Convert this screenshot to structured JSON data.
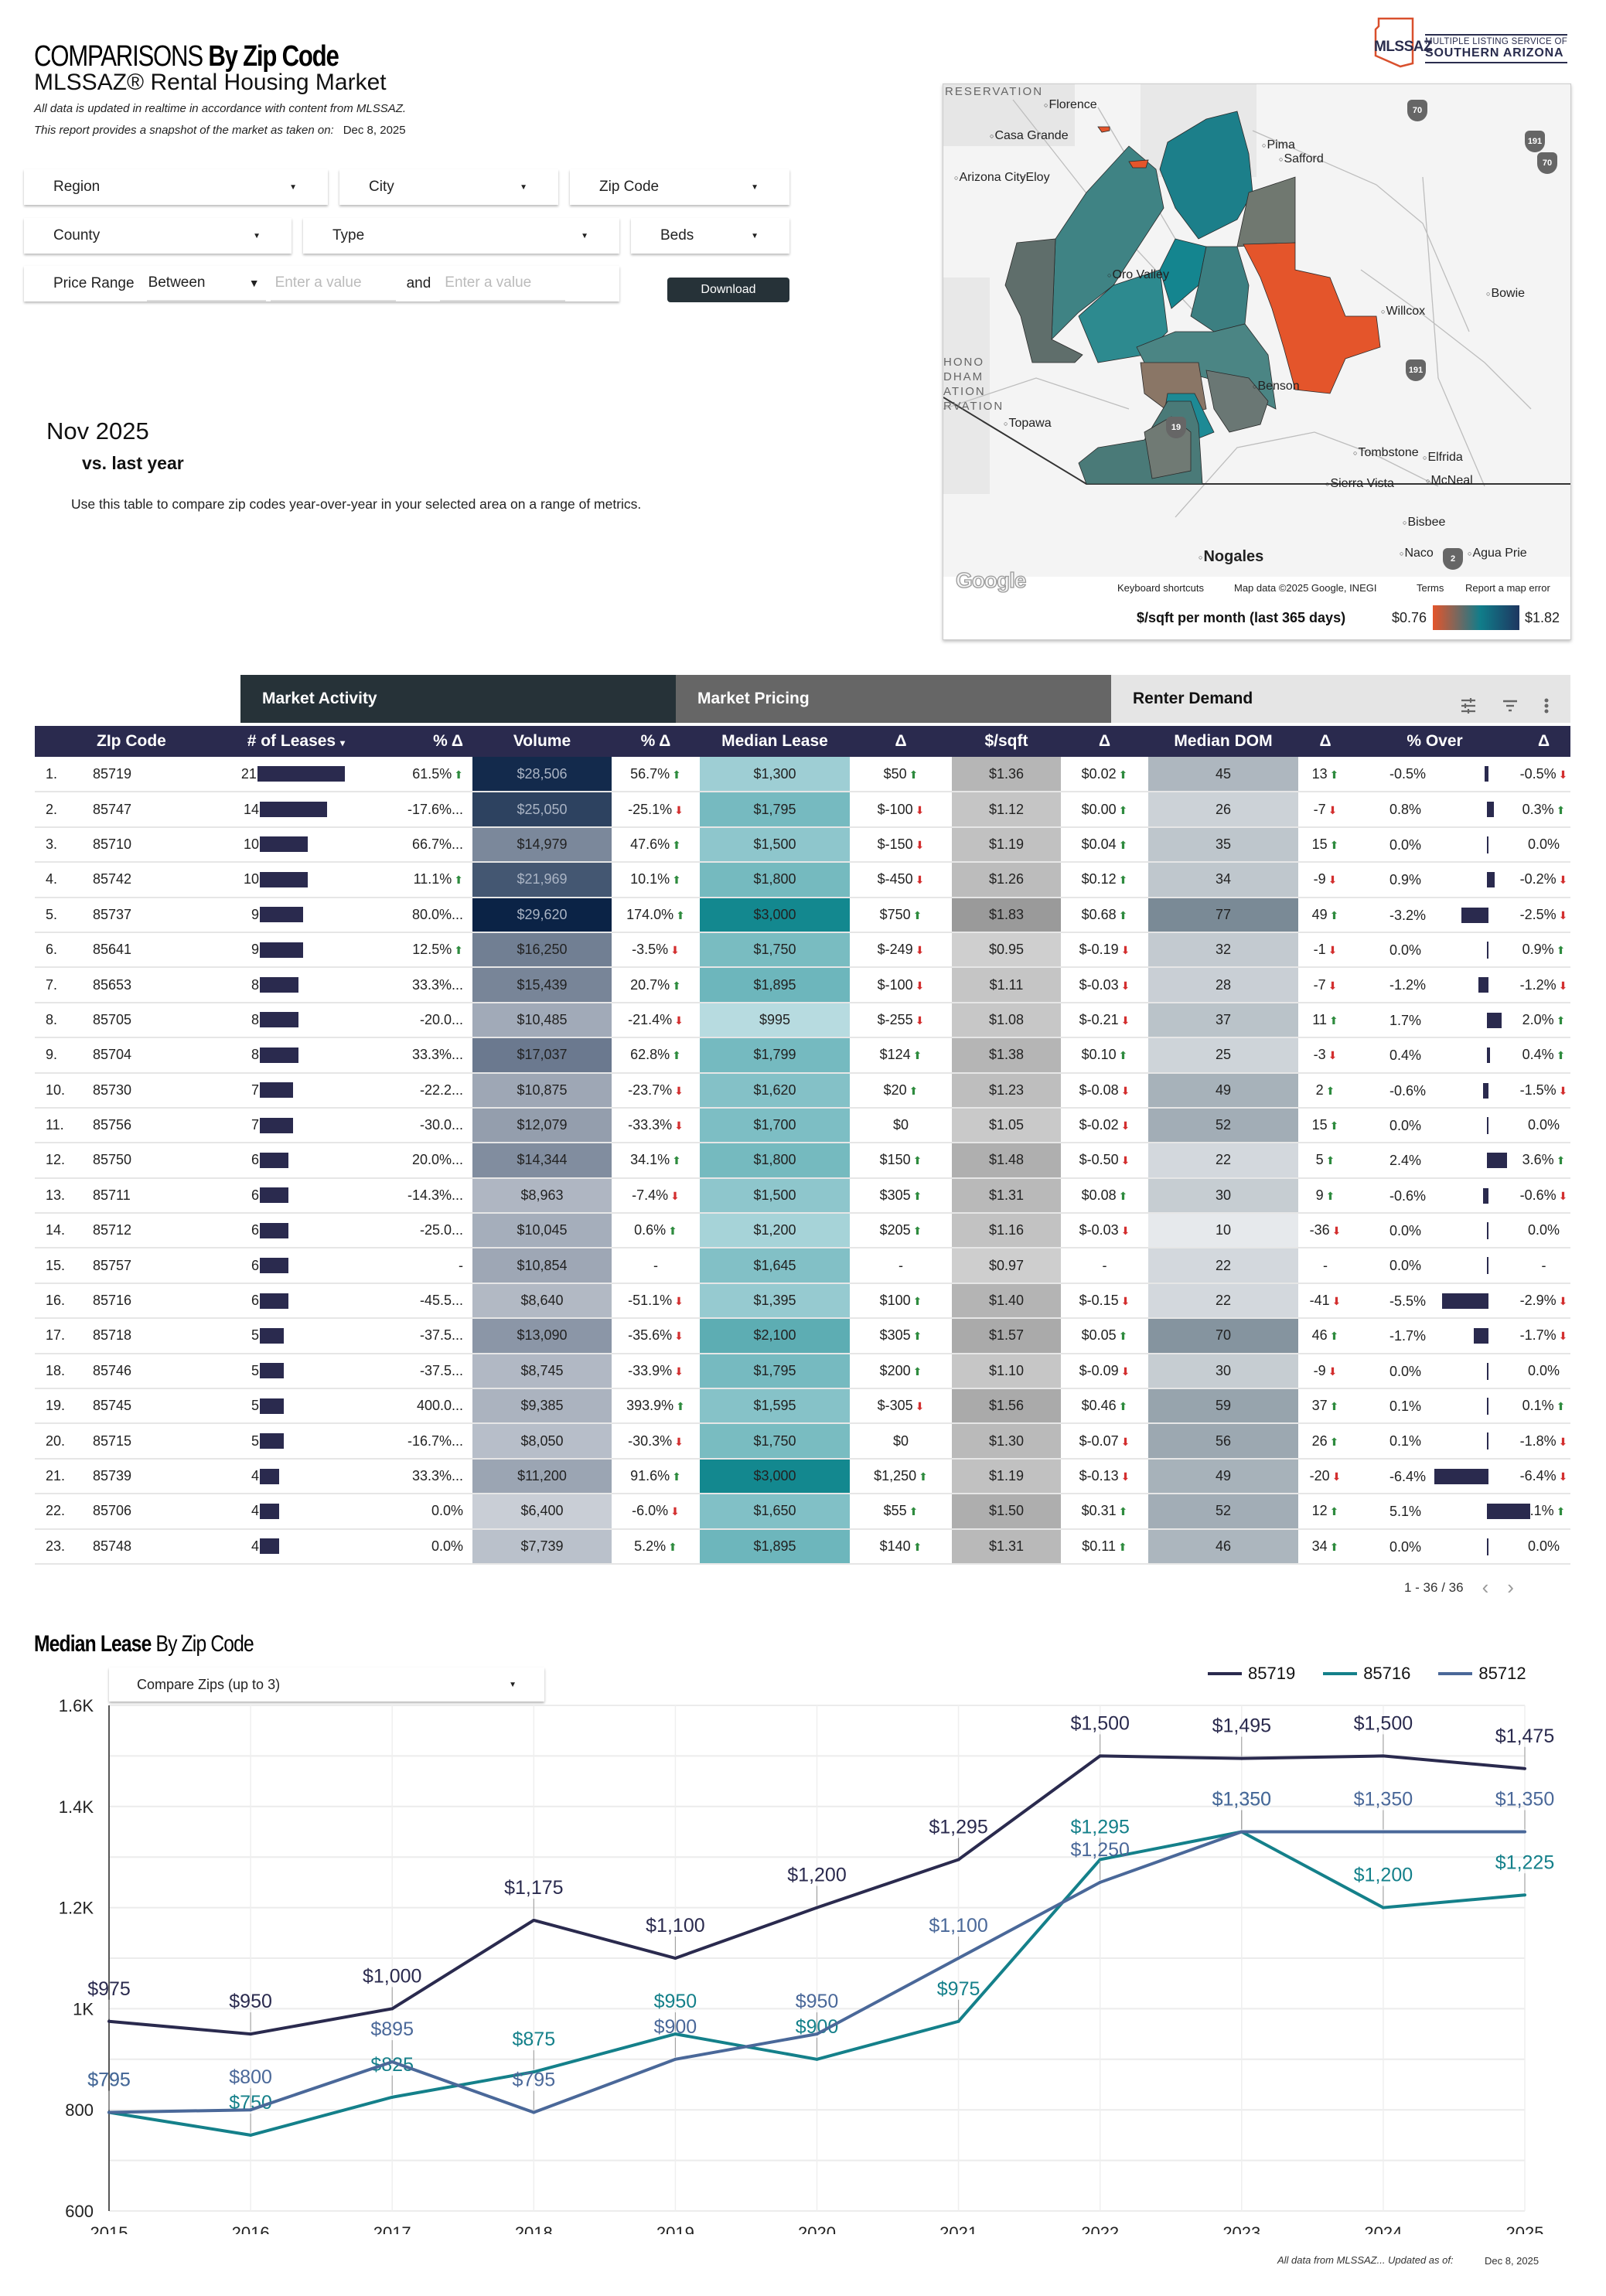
{
  "header": {
    "title_light": "COMPARISONS",
    "title_bold": "By Zip Code",
    "subtitle": "MLSSAZ® Rental Housing Market",
    "note_realtime": "All data is updated in realtime in accordance with content from MLSSAZ.",
    "note_snapshot": "This report provides a snapshot of the market as taken on:",
    "snapshot_date": "Dec 8, 2025"
  },
  "logo": {
    "abbr": "MLSSAZ",
    "line1": "MULTIPLE LISTING SERVICE OF",
    "line2": "SOUTHERN ARIZONA",
    "accent_color": "#d9502d",
    "brand_color": "#2a2d4e"
  },
  "filters": {
    "region": "Region",
    "city": "City",
    "zip_code": "Zip Code",
    "county": "County",
    "type": "Type",
    "beds": "Beds",
    "price_range_label": "Price Range",
    "price_range_operator": "Between",
    "min_placeholder": "Enter a value",
    "and_label": "and",
    "max_placeholder": "Enter a value",
    "download_label": "Download"
  },
  "period": {
    "month": "Nov 2025",
    "comparison": "vs. last year",
    "description": "Use this table to compare zip codes year-over-year in your selected area on a range of metrics."
  },
  "map": {
    "cities": {
      "florence": "Florence",
      "casa_grande": "Casa Grande",
      "arizona_city": "Arizona City",
      "eloy": "Eloy",
      "oro_valley": "Oro Valley",
      "pima": "Pima",
      "safford": "Safford",
      "willcox": "Willcox",
      "bowie": "Bowie",
      "topawa": "Topawa",
      "benson": "Benson",
      "tombstone": "Tombstone",
      "elfrida": "Elfrida",
      "mcneal": "McNeal",
      "sierra_vista": "Sierra Vista",
      "bisbee": "Bisbee",
      "naco": "Naco",
      "agua_prieta": "Agua Prie",
      "nogales": "Nogales",
      "reservation_top": "RESERVATION",
      "reservation_left": "HONO\nDHAM\nATION\nRVATION"
    },
    "highways": [
      "70",
      "191",
      "70",
      "191",
      "19",
      "2"
    ],
    "google": "Google",
    "keyboard_shortcuts": "Keyboard shortcuts",
    "map_data": "Map data ©2025 Google, INEGI",
    "terms": "Terms",
    "report_error": "Report a map error",
    "legend_title": "$/sqft per month (last 365 days)",
    "legend_min": "$0.76",
    "legend_max": "$1.82",
    "gradient_colors": [
      "#e4552b",
      "#5f6c6a",
      "#107d8a",
      "#1e3660"
    ]
  },
  "table": {
    "groups": {
      "activity": "Market Activity",
      "pricing": "Market Pricing",
      "demand": "Renter Demand"
    },
    "columns": [
      "",
      "ZIp Code",
      "# of Leases",
      "% Δ",
      "Volume",
      "% Δ",
      "Median Lease",
      "Δ",
      "$/sqft",
      "Δ",
      "Median DOM",
      "Δ",
      "% Over",
      "Δ"
    ],
    "sort_indicator": "▾",
    "rows": [
      {
        "idx": "1.",
        "zip": "85719",
        "leases": 21,
        "leases_pct": "61.5%",
        "leases_dir": "up",
        "volume": "$28,506",
        "volume_pct": "56.7%",
        "volume_dir": "up",
        "median": "$1,300",
        "median_d": "$50",
        "median_dir": "up",
        "sqft": "$1.36",
        "sqft_d": "$0.02",
        "sqft_dir": "up",
        "dom": "45",
        "dom_d": "13",
        "dom_dir": "up",
        "over": "-0.5%",
        "over_val": -0.5,
        "over_d": "-0.5%",
        "over_dir": "down"
      },
      {
        "idx": "2.",
        "zip": "85747",
        "leases": 14,
        "leases_pct": "-17.6%...",
        "leases_dir": "",
        "volume": "$25,050",
        "volume_pct": "-25.1%",
        "volume_dir": "down",
        "median": "$1,795",
        "median_d": "$-100",
        "median_dir": "down",
        "sqft": "$1.12",
        "sqft_d": "$0.00",
        "sqft_dir": "up",
        "dom": "26",
        "dom_d": "-7",
        "dom_dir": "down",
        "over": "0.8%",
        "over_val": 0.8,
        "over_d": "0.3%",
        "over_dir": "up"
      },
      {
        "idx": "3.",
        "zip": "85710",
        "leases": 10,
        "leases_pct": "66.7%...",
        "leases_dir": "",
        "volume": "$14,979",
        "volume_pct": "47.6%",
        "volume_dir": "up",
        "median": "$1,500",
        "median_d": "$-150",
        "median_dir": "down",
        "sqft": "$1.19",
        "sqft_d": "$0.04",
        "sqft_dir": "up",
        "dom": "35",
        "dom_d": "15",
        "dom_dir": "up",
        "over": "0.0%",
        "over_val": 0,
        "over_d": "0.0%",
        "over_dir": ""
      },
      {
        "idx": "4.",
        "zip": "85742",
        "leases": 10,
        "leases_pct": "11.1%",
        "leases_dir": "up",
        "volume": "$21,969",
        "volume_pct": "10.1%",
        "volume_dir": "up",
        "median": "$1,800",
        "median_d": "$-450",
        "median_dir": "down",
        "sqft": "$1.26",
        "sqft_d": "$0.12",
        "sqft_dir": "up",
        "dom": "34",
        "dom_d": "-9",
        "dom_dir": "down",
        "over": "0.9%",
        "over_val": 0.9,
        "over_d": "-0.2%",
        "over_dir": "down"
      },
      {
        "idx": "5.",
        "zip": "85737",
        "leases": 9,
        "leases_pct": "80.0%...",
        "leases_dir": "",
        "volume": "$29,620",
        "volume_pct": "174.0%",
        "volume_dir": "up",
        "median": "$3,000",
        "median_d": "$750",
        "median_dir": "up",
        "sqft": "$1.83",
        "sqft_d": "$0.68",
        "sqft_dir": "up",
        "dom": "77",
        "dom_d": "49",
        "dom_dir": "up",
        "over": "-3.2%",
        "over_val": -3.2,
        "over_d": "-2.5%",
        "over_dir": "down"
      },
      {
        "idx": "6.",
        "zip": "85641",
        "leases": 9,
        "leases_pct": "12.5%",
        "leases_dir": "up",
        "volume": "$16,250",
        "volume_pct": "-3.5%",
        "volume_dir": "down",
        "median": "$1,750",
        "median_d": "$-249",
        "median_dir": "down",
        "sqft": "$0.95",
        "sqft_d": "$-0.19",
        "sqft_dir": "down",
        "dom": "32",
        "dom_d": "-1",
        "dom_dir": "down",
        "over": "0.0%",
        "over_val": 0,
        "over_d": "0.9%",
        "over_dir": "up"
      },
      {
        "idx": "7.",
        "zip": "85653",
        "leases": 8,
        "leases_pct": "33.3%...",
        "leases_dir": "",
        "volume": "$15,439",
        "volume_pct": "20.7%",
        "volume_dir": "up",
        "median": "$1,895",
        "median_d": "$-100",
        "median_dir": "down",
        "sqft": "$1.11",
        "sqft_d": "$-0.03",
        "sqft_dir": "down",
        "dom": "28",
        "dom_d": "-7",
        "dom_dir": "down",
        "over": "-1.2%",
        "over_val": -1.2,
        "over_d": "-1.2%",
        "over_dir": "down"
      },
      {
        "idx": "8.",
        "zip": "85705",
        "leases": 8,
        "leases_pct": "-20.0...",
        "leases_dir": "",
        "volume": "$10,485",
        "volume_pct": "-21.4%",
        "volume_dir": "down",
        "median": "$995",
        "median_d": "$-255",
        "median_dir": "down",
        "sqft": "$1.08",
        "sqft_d": "$-0.21",
        "sqft_dir": "down",
        "dom": "37",
        "dom_d": "11",
        "dom_dir": "up",
        "over": "1.7%",
        "over_val": 1.7,
        "over_d": "2.0%",
        "over_dir": "up"
      },
      {
        "idx": "9.",
        "zip": "85704",
        "leases": 8,
        "leases_pct": "33.3%...",
        "leases_dir": "",
        "volume": "$17,037",
        "volume_pct": "62.8%",
        "volume_dir": "up",
        "median": "$1,799",
        "median_d": "$124",
        "median_dir": "up",
        "sqft": "$1.38",
        "sqft_d": "$0.10",
        "sqft_dir": "up",
        "dom": "25",
        "dom_d": "-3",
        "dom_dir": "down",
        "over": "0.4%",
        "over_val": 0.4,
        "over_d": "0.4%",
        "over_dir": "up"
      },
      {
        "idx": "10.",
        "zip": "85730",
        "leases": 7,
        "leases_pct": "-22.2...",
        "leases_dir": "",
        "volume": "$10,875",
        "volume_pct": "-23.7%",
        "volume_dir": "down",
        "median": "$1,620",
        "median_d": "$20",
        "median_dir": "up",
        "sqft": "$1.23",
        "sqft_d": "$-0.08",
        "sqft_dir": "down",
        "dom": "49",
        "dom_d": "2",
        "dom_dir": "up",
        "over": "-0.6%",
        "over_val": -0.6,
        "over_d": "-1.5%",
        "over_dir": "down"
      },
      {
        "idx": "11.",
        "zip": "85756",
        "leases": 7,
        "leases_pct": "-30.0...",
        "leases_dir": "",
        "volume": "$12,079",
        "volume_pct": "-33.3%",
        "volume_dir": "down",
        "median": "$1,700",
        "median_d": "$0",
        "median_dir": "",
        "sqft": "$1.05",
        "sqft_d": "$-0.02",
        "sqft_dir": "down",
        "dom": "52",
        "dom_d": "15",
        "dom_dir": "up",
        "over": "0.0%",
        "over_val": 0,
        "over_d": "0.0%",
        "over_dir": ""
      },
      {
        "idx": "12.",
        "zip": "85750",
        "leases": 6,
        "leases_pct": "20.0%...",
        "leases_dir": "",
        "volume": "$14,344",
        "volume_pct": "34.1%",
        "volume_dir": "up",
        "median": "$1,800",
        "median_d": "$150",
        "median_dir": "up",
        "sqft": "$1.48",
        "sqft_d": "$-0.50",
        "sqft_dir": "down",
        "dom": "22",
        "dom_d": "5",
        "dom_dir": "up",
        "over": "2.4%",
        "over_val": 2.4,
        "over_d": "3.6%",
        "over_dir": "up"
      },
      {
        "idx": "13.",
        "zip": "85711",
        "leases": 6,
        "leases_pct": "-14.3%...",
        "leases_dir": "",
        "volume": "$8,963",
        "volume_pct": "-7.4%",
        "volume_dir": "down",
        "median": "$1,500",
        "median_d": "$305",
        "median_dir": "up",
        "sqft": "$1.31",
        "sqft_d": "$0.08",
        "sqft_dir": "up",
        "dom": "30",
        "dom_d": "9",
        "dom_dir": "up",
        "over": "-0.6%",
        "over_val": -0.6,
        "over_d": "-0.6%",
        "over_dir": "down"
      },
      {
        "idx": "14.",
        "zip": "85712",
        "leases": 6,
        "leases_pct": "-25.0...",
        "leases_dir": "",
        "volume": "$10,045",
        "volume_pct": "0.6%",
        "volume_dir": "up",
        "median": "$1,200",
        "median_d": "$205",
        "median_dir": "up",
        "sqft": "$1.16",
        "sqft_d": "$-0.03",
        "sqft_dir": "down",
        "dom": "10",
        "dom_d": "-36",
        "dom_dir": "down",
        "over": "0.0%",
        "over_val": 0,
        "over_d": "0.0%",
        "over_dir": ""
      },
      {
        "idx": "15.",
        "zip": "85757",
        "leases": 6,
        "leases_pct": "-",
        "leases_dir": "",
        "volume": "$10,854",
        "volume_pct": "-",
        "volume_dir": "",
        "median": "$1,645",
        "median_d": "-",
        "median_dir": "",
        "sqft": "$0.97",
        "sqft_d": "-",
        "sqft_dir": "",
        "dom": "22",
        "dom_d": "-",
        "dom_dir": "",
        "over": "0.0%",
        "over_val": 0,
        "over_d": "-",
        "over_dir": ""
      },
      {
        "idx": "16.",
        "zip": "85716",
        "leases": 6,
        "leases_pct": "-45.5...",
        "leases_dir": "",
        "volume": "$8,640",
        "volume_pct": "-51.1%",
        "volume_dir": "down",
        "median": "$1,395",
        "median_d": "$100",
        "median_dir": "up",
        "sqft": "$1.40",
        "sqft_d": "$-0.15",
        "sqft_dir": "down",
        "dom": "22",
        "dom_d": "-41",
        "dom_dir": "down",
        "over": "-5.5%",
        "over_val": -5.5,
        "over_d": "-2.9%",
        "over_dir": "down"
      },
      {
        "idx": "17.",
        "zip": "85718",
        "leases": 5,
        "leases_pct": "-37.5...",
        "leases_dir": "",
        "volume": "$13,090",
        "volume_pct": "-35.6%",
        "volume_dir": "down",
        "median": "$2,100",
        "median_d": "$305",
        "median_dir": "up",
        "sqft": "$1.57",
        "sqft_d": "$0.05",
        "sqft_dir": "up",
        "dom": "70",
        "dom_d": "46",
        "dom_dir": "up",
        "over": "-1.7%",
        "over_val": -1.7,
        "over_d": "-1.7%",
        "over_dir": "down"
      },
      {
        "idx": "18.",
        "zip": "85746",
        "leases": 5,
        "leases_pct": "-37.5...",
        "leases_dir": "",
        "volume": "$8,745",
        "volume_pct": "-33.9%",
        "volume_dir": "down",
        "median": "$1,795",
        "median_d": "$200",
        "median_dir": "up",
        "sqft": "$1.10",
        "sqft_d": "$-0.09",
        "sqft_dir": "down",
        "dom": "30",
        "dom_d": "-9",
        "dom_dir": "down",
        "over": "0.0%",
        "over_val": 0,
        "over_d": "0.0%",
        "over_dir": ""
      },
      {
        "idx": "19.",
        "zip": "85745",
        "leases": 5,
        "leases_pct": "400.0...",
        "leases_dir": "",
        "volume": "$9,385",
        "volume_pct": "393.9%",
        "volume_dir": "up",
        "median": "$1,595",
        "median_d": "$-305",
        "median_dir": "down",
        "sqft": "$1.56",
        "sqft_d": "$0.46",
        "sqft_dir": "up",
        "dom": "59",
        "dom_d": "37",
        "dom_dir": "up",
        "over": "0.1%",
        "over_val": 0.1,
        "over_d": "0.1%",
        "over_dir": "up"
      },
      {
        "idx": "20.",
        "zip": "85715",
        "leases": 5,
        "leases_pct": "-16.7%...",
        "leases_dir": "",
        "volume": "$8,050",
        "volume_pct": "-30.3%",
        "volume_dir": "down",
        "median": "$1,750",
        "median_d": "$0",
        "median_dir": "",
        "sqft": "$1.30",
        "sqft_d": "$-0.07",
        "sqft_dir": "down",
        "dom": "56",
        "dom_d": "26",
        "dom_dir": "up",
        "over": "0.1%",
        "over_val": 0.1,
        "over_d": "-1.8%",
        "over_dir": "down"
      },
      {
        "idx": "21.",
        "zip": "85739",
        "leases": 4,
        "leases_pct": "33.3%...",
        "leases_dir": "",
        "volume": "$11,200",
        "volume_pct": "91.6%",
        "volume_dir": "up",
        "median": "$3,000",
        "median_d": "$1,250",
        "median_dir": "up",
        "sqft": "$1.19",
        "sqft_d": "$-0.13",
        "sqft_dir": "down",
        "dom": "49",
        "dom_d": "-20",
        "dom_dir": "down",
        "over": "-6.4%",
        "over_val": -6.4,
        "over_d": "-6.4%",
        "over_dir": "down"
      },
      {
        "idx": "22.",
        "zip": "85706",
        "leases": 4,
        "leases_pct": "0.0%",
        "leases_dir": "",
        "volume": "$6,400",
        "volume_pct": "-6.0%",
        "volume_dir": "down",
        "median": "$1,650",
        "median_d": "$55",
        "median_dir": "up",
        "sqft": "$1.50",
        "sqft_d": "$0.31",
        "sqft_dir": "up",
        "dom": "52",
        "dom_d": "12",
        "dom_dir": "up",
        "over": "5.1%",
        "over_val": 5.1,
        "over_d": "5.1%",
        "over_dir": "up"
      },
      {
        "idx": "23.",
        "zip": "85748",
        "leases": 4,
        "leases_pct": "0.0%",
        "leases_dir": "",
        "volume": "$7,739",
        "volume_pct": "5.2%",
        "volume_dir": "up",
        "median": "$1,895",
        "median_d": "$140",
        "median_dir": "up",
        "sqft": "$1.31",
        "sqft_d": "$0.11",
        "sqft_dir": "up",
        "dom": "46",
        "dom_d": "34",
        "dom_dir": "up",
        "over": "0.0%",
        "over_val": 0,
        "over_d": "0.0%",
        "over_dir": ""
      }
    ],
    "pagination": "1 - 36 / 36",
    "prev_icon": "‹",
    "next_icon": "›",
    "colors": {
      "header_bg": "#2a2a4e",
      "bar": "#2a2a4e",
      "up": "#2e8b3e",
      "down": "#d32f2f"
    }
  },
  "chart_section": {
    "title_bold": "Median Lease",
    "title_light": "By Zip Code",
    "compare_label": "Compare Zips (up to 3)",
    "footer_note": "All data from MLSSAZ... Updated as of:",
    "footer_date": "Dec 8, 2025"
  },
  "chart_data": {
    "type": "line",
    "title": "Median Lease By Zip Code",
    "xlabel": "",
    "ylabel": "",
    "x": [
      "2015",
      "2016",
      "2017",
      "2018",
      "2019",
      "2020",
      "2021",
      "2022",
      "2023",
      "2024",
      "2025"
    ],
    "ylim": [
      600,
      1600
    ],
    "yticks": [
      600,
      800,
      1000,
      1200,
      1400,
      1600
    ],
    "ytick_labels": [
      "600",
      "800",
      "1K",
      "1.2K",
      "1.4K",
      "1.6K"
    ],
    "grid": true,
    "legend_position": "top-right",
    "series": [
      {
        "name": "85719",
        "color": "#2a2a4e",
        "values": [
          975,
          950,
          1000,
          1175,
          1100,
          1200,
          1295,
          1500,
          1495,
          1500,
          1475
        ]
      },
      {
        "name": "85716",
        "color": "#14808a",
        "values": [
          795,
          750,
          825,
          875,
          950,
          900,
          975,
          1295,
          1350,
          1200,
          1225
        ]
      },
      {
        "name": "85712",
        "color": "#4a6899",
        "values": [
          795,
          800,
          895,
          795,
          900,
          950,
          1100,
          1250,
          1350,
          1350,
          1350
        ]
      }
    ]
  }
}
